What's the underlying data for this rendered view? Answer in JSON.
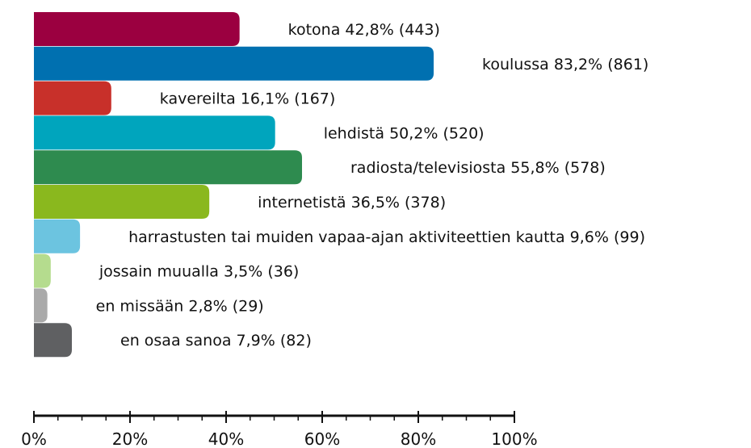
{
  "chart_data": {
    "type": "barh",
    "categories": [
      "kotona",
      "koulussa",
      "kavereilta",
      "lehdistä",
      "radiosta/televisiosta",
      "internetistä",
      "harrastusten tai muiden vapaa-ajan aktiviteettien kautta",
      "jossain muualla",
      "en missään",
      "en osaa sanoa"
    ],
    "values": [
      42.8,
      83.2,
      16.1,
      50.2,
      55.8,
      36.5,
      9.6,
      3.5,
      2.8,
      7.9
    ],
    "value_labels": [
      "42,8%",
      "83,2%",
      "16,1%",
      "50,2%",
      "55,8%",
      "36,5%",
      "9,6%",
      "3,5%",
      "2,8%",
      "7,9%"
    ],
    "count_labels": [
      "(443)",
      "(861)",
      "(167)",
      "(520)",
      "(578)",
      "(378)",
      "(99)",
      "(36)",
      "(29)",
      "(82)"
    ],
    "colors": [
      "#9b0040",
      "#0070b0",
      "#c8302a",
      "#00a5bd",
      "#2e8b4f",
      "#8ab81e",
      "#6cc4e0",
      "#b5dc8e",
      "#aaaaaa",
      "#5f6062"
    ],
    "xlim": [
      0,
      100
    ],
    "xticks": [
      {
        "value": 0,
        "label": "0%"
      },
      {
        "value": 20,
        "label": "20%"
      },
      {
        "value": 40,
        "label": "40%"
      },
      {
        "value": 60,
        "label": "60%"
      },
      {
        "value": 80,
        "label": "80%"
      },
      {
        "value": 100,
        "label": "100%"
      }
    ],
    "xticks_minor": [
      5,
      10,
      15,
      25,
      30,
      35,
      45,
      50,
      55,
      65,
      70,
      75,
      85,
      90,
      95
    ]
  }
}
